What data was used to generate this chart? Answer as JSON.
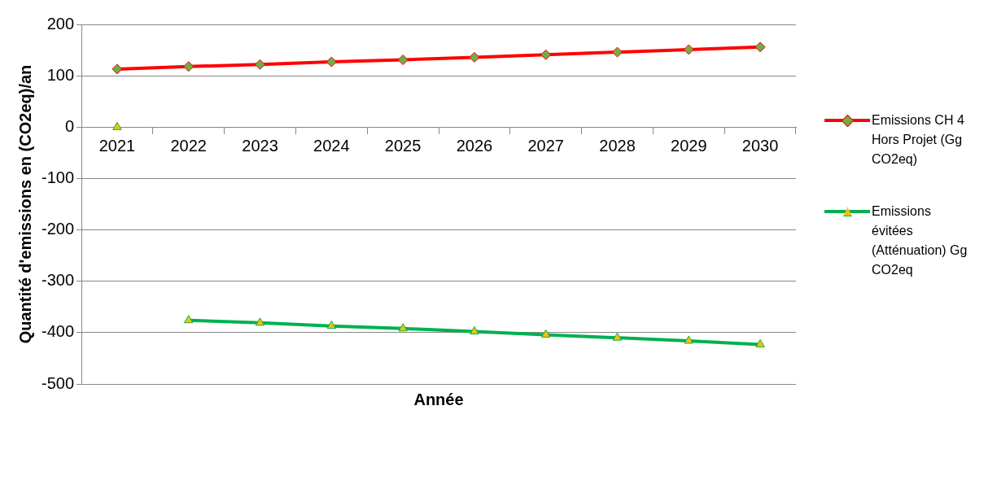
{
  "chart_data": {
    "type": "line",
    "xlabel": "Année",
    "ylabel": "Quantité d'emissions en (CO2eq)/an",
    "categories": [
      "2021",
      "2022",
      "2023",
      "2024",
      "2025",
      "2026",
      "2027",
      "2028",
      "2029",
      "2030"
    ],
    "series": [
      {
        "name": "Emissions CH 4 Hors Projet (Gg CO2eq)",
        "color": "#ff0000",
        "colors": [
          "#70ad47",
          "#70ad47",
          "#70ad47",
          "#70ad47",
          "#70ad47",
          "#70ad47",
          "#70ad47",
          "#70ad47",
          "#70ad47",
          "#70ad47"
        ],
        "marker": "diamond",
        "values": [
          113,
          118,
          122,
          127,
          131,
          136,
          141,
          146,
          151,
          156
        ]
      },
      {
        "name": "Emissions évitées (Atténuation) Gg CO2eq",
        "color": "#00b050",
        "colors": [
          "#ffc000",
          "#ffc000",
          "#ffc000",
          "#ffc000",
          "#ffc000",
          "#ffc000",
          "#ffc000",
          "#ffc000",
          "#ffc000",
          "#ffc000"
        ],
        "marker": "triangle",
        "values": [
          null,
          -376,
          -381,
          -387,
          -392,
          -398,
          -404,
          -410,
          -416,
          -423
        ]
      },
      {
        "type": "scatter",
        "color": "#00b050",
        "colors": [
          "#ffc000",
          "#ffc000",
          "#ffc000",
          "#ffc000",
          "#ffc000",
          "#ffc000",
          "#ffc000",
          "#ffc000",
          "#ffc000",
          "#ffc000"
        ],
        "marker": "triangle",
        "values": [
          0,
          null,
          null,
          null,
          null,
          null,
          null,
          null,
          null,
          null
        ]
      }
    ],
    "ylim": [
      -500,
      200
    ],
    "yticks": [
      -500,
      -400,
      -300,
      -200,
      -100,
      0,
      100,
      200
    ],
    "grid": "y",
    "legend": "right"
  }
}
